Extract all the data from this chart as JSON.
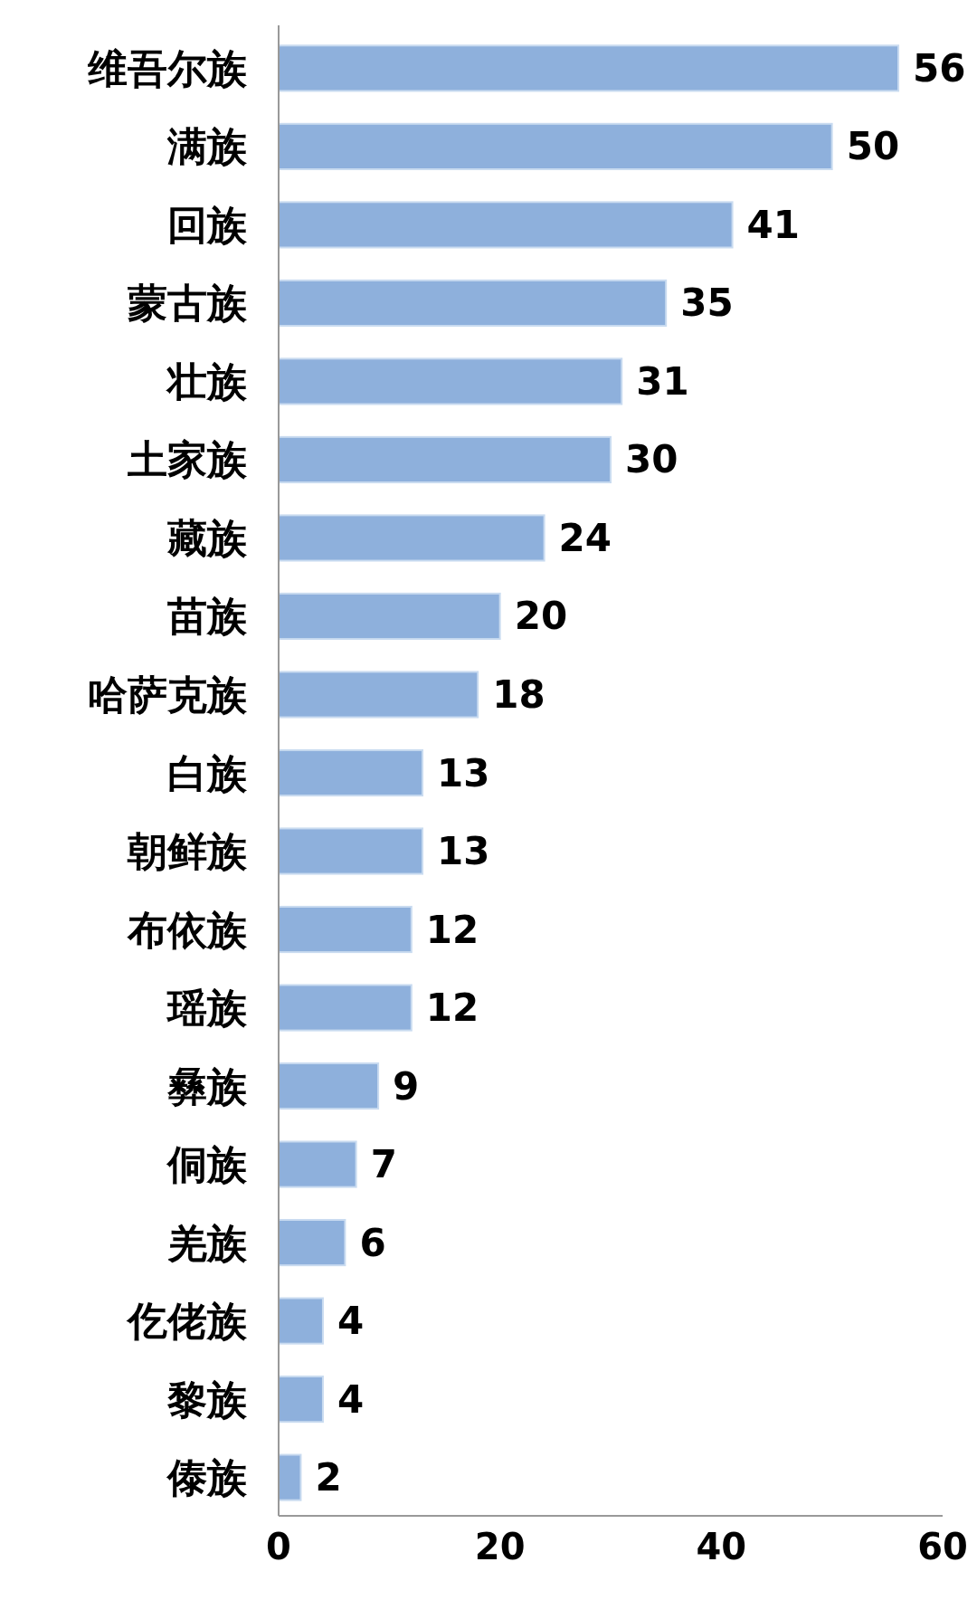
{
  "chart_data": {
    "type": "bar",
    "orientation": "horizontal",
    "categories": [
      "维吾尔族",
      "满族",
      "回族",
      "蒙古族",
      "壮族",
      "土家族",
      "藏族",
      "苗族",
      "哈萨克族",
      "白族",
      "朝鲜族",
      "布依族",
      "瑶族",
      "彝族",
      "侗族",
      "羌族",
      "仡佬族",
      "黎族",
      "傣族"
    ],
    "values": [
      56,
      50,
      41,
      35,
      31,
      30,
      24,
      20,
      18,
      13,
      13,
      12,
      12,
      9,
      7,
      6,
      4,
      4,
      2
    ],
    "color": "#8eb0dc",
    "xlim": [
      0,
      60
    ],
    "xticks": [
      0,
      20,
      40,
      60
    ],
    "data_labels": true,
    "grid": false
  }
}
